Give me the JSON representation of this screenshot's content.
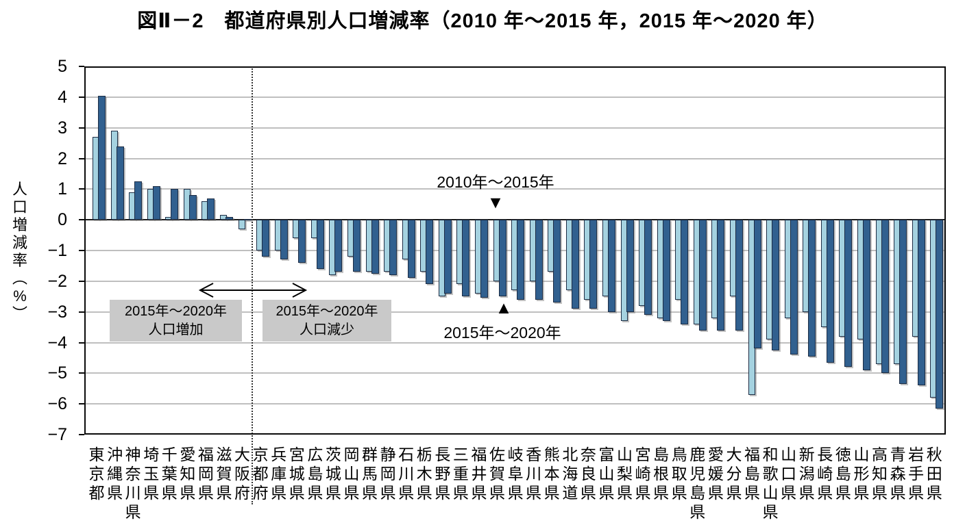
{
  "title": "図Ⅱ－2　都道府県別人口増減率（2010 年～2015 年，2015 年～2020 年）",
  "chart_data": {
    "type": "bar",
    "title": "都道府県別人口増減率（2010年～2015年，2015年～2020年）",
    "xlabel": "",
    "ylabel": "人口増減率（%）",
    "ylim": [
      -7,
      5
    ],
    "yticks": [
      5,
      4,
      3,
      2,
      1,
      0,
      -1,
      -2,
      -3,
      -4,
      -5,
      -6,
      -7
    ],
    "grid": true,
    "legend_position": "in-plot arrows",
    "categories": [
      "東京都",
      "沖縄県",
      "神奈川県",
      "埼玉県",
      "千葉県",
      "愛知県",
      "福岡県",
      "滋賀県",
      "大阪府",
      "京都府",
      "兵庫県",
      "宮城県",
      "広島県",
      "茨城県",
      "岡山県",
      "群馬県",
      "静岡県",
      "石川県",
      "栃木県",
      "長野県",
      "三重県",
      "福井県",
      "佐賀県",
      "岐阜県",
      "香川県",
      "熊本県",
      "北海道",
      "奈良県",
      "富山県",
      "山梨県",
      "宮崎県",
      "島根県",
      "鳥取県",
      "鹿児島県",
      "愛媛県",
      "大分県",
      "福島県",
      "和歌山県",
      "山口県",
      "新潟県",
      "長崎県",
      "徳島県",
      "山形県",
      "高知県",
      "青森県",
      "岩手県",
      "秋田県"
    ],
    "series": [
      {
        "name": "2010年～2015年",
        "color": "#a5d2e0",
        "values": [
          2.7,
          2.9,
          0.9,
          1.0,
          0.1,
          1.0,
          0.6,
          0.15,
          -0.3,
          -1.0,
          -1.0,
          -0.6,
          -0.6,
          -1.8,
          -1.2,
          -1.7,
          -1.7,
          -1.3,
          -1.7,
          -2.5,
          -2.1,
          -2.4,
          -2.0,
          -2.3,
          -2.0,
          -1.7,
          -2.3,
          -2.6,
          -2.5,
          -3.3,
          -2.8,
          -3.2,
          -2.6,
          -3.4,
          -3.2,
          -2.5,
          -5.7,
          -3.9,
          -3.2,
          -3.0,
          -3.5,
          -3.8,
          -3.9,
          -4.7,
          -4.7,
          -3.8,
          -5.8
        ]
      },
      {
        "name": "2015年～2020年",
        "color": "#31608f",
        "values": [
          4.05,
          2.4,
          1.25,
          1.1,
          1.0,
          0.8,
          0.7,
          0.1,
          0.02,
          -1.2,
          -1.3,
          -1.4,
          -1.6,
          -1.7,
          -1.7,
          -1.75,
          -1.8,
          -1.9,
          -2.1,
          -2.4,
          -2.5,
          -2.55,
          -2.5,
          -2.6,
          -2.6,
          -2.7,
          -2.9,
          -2.9,
          -3.0,
          -3.0,
          -3.1,
          -3.3,
          -3.4,
          -3.6,
          -3.6,
          -3.6,
          -4.2,
          -4.25,
          -4.4,
          -4.45,
          -4.65,
          -4.8,
          -4.9,
          -5.0,
          -5.35,
          -5.4,
          -6.15
        ]
      }
    ],
    "annotations": {
      "series1_label": "2010年～2015年",
      "series2_label": "2015年～2020年",
      "marker_down": "▼",
      "marker_up": "▲",
      "increase_box": [
        "2015年～2020年",
        "人口増加"
      ],
      "decrease_box": [
        "2015年～2020年",
        "人口減少"
      ],
      "separator_after_category": "大阪府"
    }
  }
}
